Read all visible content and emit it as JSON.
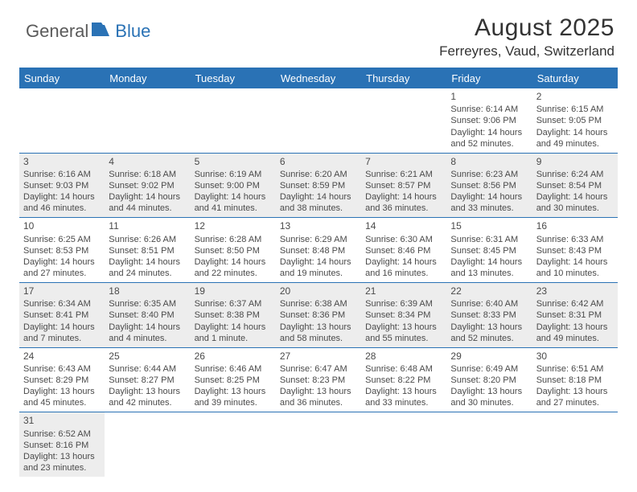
{
  "logo": {
    "general": "General",
    "blue": "Blue"
  },
  "title": "August 2025",
  "location": "Ferreyres, Vaud, Switzerland",
  "colors": {
    "headerBar": "#2a72b5",
    "headerText": "#ffffff",
    "shadedCell": "#ededed",
    "cellBorder": "#2a72b5",
    "bodyText": "#4a4a4a",
    "titleText": "#333333"
  },
  "typography": {
    "titleFontSize": 30,
    "locationFontSize": 17,
    "weekdayFontSize": 13,
    "dayNumFontSize": 12,
    "dayBodyFontSize": 11,
    "fontFamily": "Arial"
  },
  "weekdays": [
    "Sunday",
    "Monday",
    "Tuesday",
    "Wednesday",
    "Thursday",
    "Friday",
    "Saturday"
  ],
  "weeks": [
    [
      {
        "num": "",
        "sunrise": "",
        "sunset": "",
        "daylight": "",
        "shaded": false
      },
      {
        "num": "",
        "sunrise": "",
        "sunset": "",
        "daylight": "",
        "shaded": false
      },
      {
        "num": "",
        "sunrise": "",
        "sunset": "",
        "daylight": "",
        "shaded": false
      },
      {
        "num": "",
        "sunrise": "",
        "sunset": "",
        "daylight": "",
        "shaded": false
      },
      {
        "num": "",
        "sunrise": "",
        "sunset": "",
        "daylight": "",
        "shaded": false
      },
      {
        "num": "1",
        "sunrise": "Sunrise: 6:14 AM",
        "sunset": "Sunset: 9:06 PM",
        "daylight": "Daylight: 14 hours and 52 minutes.",
        "shaded": false
      },
      {
        "num": "2",
        "sunrise": "Sunrise: 6:15 AM",
        "sunset": "Sunset: 9:05 PM",
        "daylight": "Daylight: 14 hours and 49 minutes.",
        "shaded": false
      }
    ],
    [
      {
        "num": "3",
        "sunrise": "Sunrise: 6:16 AM",
        "sunset": "Sunset: 9:03 PM",
        "daylight": "Daylight: 14 hours and 46 minutes.",
        "shaded": true
      },
      {
        "num": "4",
        "sunrise": "Sunrise: 6:18 AM",
        "sunset": "Sunset: 9:02 PM",
        "daylight": "Daylight: 14 hours and 44 minutes.",
        "shaded": true
      },
      {
        "num": "5",
        "sunrise": "Sunrise: 6:19 AM",
        "sunset": "Sunset: 9:00 PM",
        "daylight": "Daylight: 14 hours and 41 minutes.",
        "shaded": true
      },
      {
        "num": "6",
        "sunrise": "Sunrise: 6:20 AM",
        "sunset": "Sunset: 8:59 PM",
        "daylight": "Daylight: 14 hours and 38 minutes.",
        "shaded": true
      },
      {
        "num": "7",
        "sunrise": "Sunrise: 6:21 AM",
        "sunset": "Sunset: 8:57 PM",
        "daylight": "Daylight: 14 hours and 36 minutes.",
        "shaded": true
      },
      {
        "num": "8",
        "sunrise": "Sunrise: 6:23 AM",
        "sunset": "Sunset: 8:56 PM",
        "daylight": "Daylight: 14 hours and 33 minutes.",
        "shaded": true
      },
      {
        "num": "9",
        "sunrise": "Sunrise: 6:24 AM",
        "sunset": "Sunset: 8:54 PM",
        "daylight": "Daylight: 14 hours and 30 minutes.",
        "shaded": true
      }
    ],
    [
      {
        "num": "10",
        "sunrise": "Sunrise: 6:25 AM",
        "sunset": "Sunset: 8:53 PM",
        "daylight": "Daylight: 14 hours and 27 minutes.",
        "shaded": false
      },
      {
        "num": "11",
        "sunrise": "Sunrise: 6:26 AM",
        "sunset": "Sunset: 8:51 PM",
        "daylight": "Daylight: 14 hours and 24 minutes.",
        "shaded": false
      },
      {
        "num": "12",
        "sunrise": "Sunrise: 6:28 AM",
        "sunset": "Sunset: 8:50 PM",
        "daylight": "Daylight: 14 hours and 22 minutes.",
        "shaded": false
      },
      {
        "num": "13",
        "sunrise": "Sunrise: 6:29 AM",
        "sunset": "Sunset: 8:48 PM",
        "daylight": "Daylight: 14 hours and 19 minutes.",
        "shaded": false
      },
      {
        "num": "14",
        "sunrise": "Sunrise: 6:30 AM",
        "sunset": "Sunset: 8:46 PM",
        "daylight": "Daylight: 14 hours and 16 minutes.",
        "shaded": false
      },
      {
        "num": "15",
        "sunrise": "Sunrise: 6:31 AM",
        "sunset": "Sunset: 8:45 PM",
        "daylight": "Daylight: 14 hours and 13 minutes.",
        "shaded": false
      },
      {
        "num": "16",
        "sunrise": "Sunrise: 6:33 AM",
        "sunset": "Sunset: 8:43 PM",
        "daylight": "Daylight: 14 hours and 10 minutes.",
        "shaded": false
      }
    ],
    [
      {
        "num": "17",
        "sunrise": "Sunrise: 6:34 AM",
        "sunset": "Sunset: 8:41 PM",
        "daylight": "Daylight: 14 hours and 7 minutes.",
        "shaded": true
      },
      {
        "num": "18",
        "sunrise": "Sunrise: 6:35 AM",
        "sunset": "Sunset: 8:40 PM",
        "daylight": "Daylight: 14 hours and 4 minutes.",
        "shaded": true
      },
      {
        "num": "19",
        "sunrise": "Sunrise: 6:37 AM",
        "sunset": "Sunset: 8:38 PM",
        "daylight": "Daylight: 14 hours and 1 minute.",
        "shaded": true
      },
      {
        "num": "20",
        "sunrise": "Sunrise: 6:38 AM",
        "sunset": "Sunset: 8:36 PM",
        "daylight": "Daylight: 13 hours and 58 minutes.",
        "shaded": true
      },
      {
        "num": "21",
        "sunrise": "Sunrise: 6:39 AM",
        "sunset": "Sunset: 8:34 PM",
        "daylight": "Daylight: 13 hours and 55 minutes.",
        "shaded": true
      },
      {
        "num": "22",
        "sunrise": "Sunrise: 6:40 AM",
        "sunset": "Sunset: 8:33 PM",
        "daylight": "Daylight: 13 hours and 52 minutes.",
        "shaded": true
      },
      {
        "num": "23",
        "sunrise": "Sunrise: 6:42 AM",
        "sunset": "Sunset: 8:31 PM",
        "daylight": "Daylight: 13 hours and 49 minutes.",
        "shaded": true
      }
    ],
    [
      {
        "num": "24",
        "sunrise": "Sunrise: 6:43 AM",
        "sunset": "Sunset: 8:29 PM",
        "daylight": "Daylight: 13 hours and 45 minutes.",
        "shaded": false
      },
      {
        "num": "25",
        "sunrise": "Sunrise: 6:44 AM",
        "sunset": "Sunset: 8:27 PM",
        "daylight": "Daylight: 13 hours and 42 minutes.",
        "shaded": false
      },
      {
        "num": "26",
        "sunrise": "Sunrise: 6:46 AM",
        "sunset": "Sunset: 8:25 PM",
        "daylight": "Daylight: 13 hours and 39 minutes.",
        "shaded": false
      },
      {
        "num": "27",
        "sunrise": "Sunrise: 6:47 AM",
        "sunset": "Sunset: 8:23 PM",
        "daylight": "Daylight: 13 hours and 36 minutes.",
        "shaded": false
      },
      {
        "num": "28",
        "sunrise": "Sunrise: 6:48 AM",
        "sunset": "Sunset: 8:22 PM",
        "daylight": "Daylight: 13 hours and 33 minutes.",
        "shaded": false
      },
      {
        "num": "29",
        "sunrise": "Sunrise: 6:49 AM",
        "sunset": "Sunset: 8:20 PM",
        "daylight": "Daylight: 13 hours and 30 minutes.",
        "shaded": false
      },
      {
        "num": "30",
        "sunrise": "Sunrise: 6:51 AM",
        "sunset": "Sunset: 8:18 PM",
        "daylight": "Daylight: 13 hours and 27 minutes.",
        "shaded": false
      }
    ],
    [
      {
        "num": "31",
        "sunrise": "Sunrise: 6:52 AM",
        "sunset": "Sunset: 8:16 PM",
        "daylight": "Daylight: 13 hours and 23 minutes.",
        "shaded": true
      },
      {
        "num": "",
        "sunrise": "",
        "sunset": "",
        "daylight": "",
        "shaded": false
      },
      {
        "num": "",
        "sunrise": "",
        "sunset": "",
        "daylight": "",
        "shaded": false
      },
      {
        "num": "",
        "sunrise": "",
        "sunset": "",
        "daylight": "",
        "shaded": false
      },
      {
        "num": "",
        "sunrise": "",
        "sunset": "",
        "daylight": "",
        "shaded": false
      },
      {
        "num": "",
        "sunrise": "",
        "sunset": "",
        "daylight": "",
        "shaded": false
      },
      {
        "num": "",
        "sunrise": "",
        "sunset": "",
        "daylight": "",
        "shaded": false
      }
    ]
  ]
}
